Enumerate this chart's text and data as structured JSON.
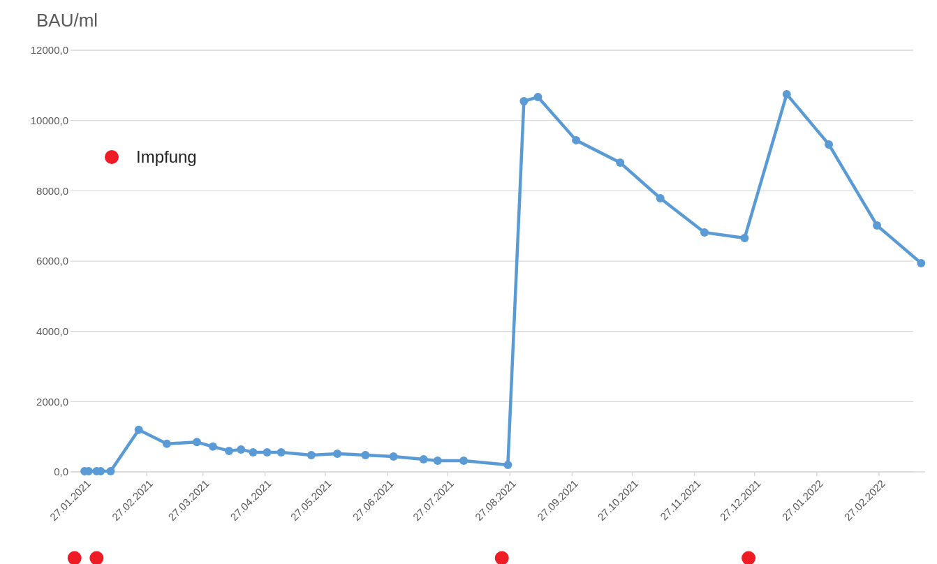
{
  "chart_data": {
    "type": "line",
    "ylabel": "BAU/ml",
    "xlim": [
      "2021-01-20",
      "2022-03-22"
    ],
    "ylim": [
      -2600,
      12000
    ],
    "yticks": [
      {
        "value": 0,
        "label": "0,0"
      },
      {
        "value": 2000,
        "label": "2000,0"
      },
      {
        "value": 4000,
        "label": "4000,0"
      },
      {
        "value": 6000,
        "label": "6000,0"
      },
      {
        "value": 8000,
        "label": "8000,0"
      },
      {
        "value": 10000,
        "label": "10000,0"
      },
      {
        "value": 12000,
        "label": "12000,0"
      }
    ],
    "xticks": [
      {
        "value": "2021-01-27",
        "label": "27.01.2021"
      },
      {
        "value": "2021-02-27",
        "label": "27.02.2021"
      },
      {
        "value": "2021-03-27",
        "label": "27.03.2021"
      },
      {
        "value": "2021-04-27",
        "label": "27.04.2021"
      },
      {
        "value": "2021-05-27",
        "label": "27.05.2021"
      },
      {
        "value": "2021-06-27",
        "label": "27.06.2021"
      },
      {
        "value": "2021-07-27",
        "label": "27.07.2021"
      },
      {
        "value": "2021-08-27",
        "label": "27.08.2021"
      },
      {
        "value": "2021-09-27",
        "label": "27.09.2021"
      },
      {
        "value": "2021-10-27",
        "label": "27.10.2021"
      },
      {
        "value": "2021-11-27",
        "label": "27.11.2021"
      },
      {
        "value": "2021-12-27",
        "label": "27.12.2021"
      },
      {
        "value": "2022-01-27",
        "label": "27.01.2022"
      },
      {
        "value": "2022-02-27",
        "label": "27.02.2022"
      }
    ],
    "grid": "y",
    "legend": "top left",
    "marker": "circle",
    "line_style": "solid",
    "series": [
      {
        "color": "#5b9bd5",
        "x": [
          "2021-01-27",
          "2021-01-29",
          "2021-02-02",
          "2021-02-04",
          "2021-02-09",
          "2021-02-23",
          "2021-03-09",
          "2021-03-24",
          "2021-04-01",
          "2021-04-09",
          "2021-04-15",
          "2021-04-21",
          "2021-04-28",
          "2021-05-05",
          "2021-05-20",
          "2021-06-02",
          "2021-06-16",
          "2021-06-30",
          "2021-07-15",
          "2021-07-22",
          "2021-08-04",
          "2021-08-26",
          "2021-09-03",
          "2021-09-10",
          "2021-09-29",
          "2021-10-21",
          "2021-11-10",
          "2021-12-02",
          "2021-12-22",
          "2022-01-12",
          "2022-02-02",
          "2022-02-26",
          "2022-03-20"
        ],
        "values": [
          20,
          20,
          20,
          20,
          20,
          1200,
          800,
          850,
          720,
          600,
          640,
          560,
          560,
          560,
          480,
          520,
          480,
          440,
          360,
          320,
          320,
          200,
          10550,
          10670,
          9440,
          8800,
          7790,
          6815,
          6655,
          10750,
          9320,
          7015,
          5940
        ]
      },
      {
        "type": "scatter",
        "name": "Impfung",
        "color": "#ee1c25",
        "x": [
          "2021-01-22",
          "2021-02-02",
          "2021-08-23",
          "2021-12-24"
        ],
        "values": [
          -2450,
          -2450,
          -2450,
          -2450
        ]
      }
    ]
  }
}
